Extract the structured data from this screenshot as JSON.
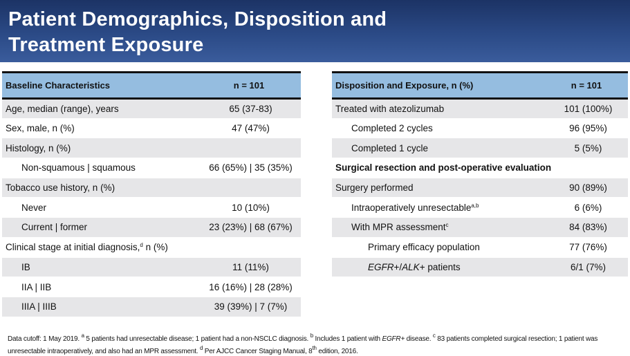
{
  "title": {
    "line1": "Patient Demographics, Disposition and",
    "line2": "Treatment Exposure"
  },
  "baseline": {
    "header": [
      "Baseline Characteristics",
      "n = 101"
    ],
    "rows": [
      {
        "label": "Age, median (range), years",
        "value": "65 (37-83)"
      },
      {
        "label": "Sex, male, n (%)",
        "value": "47 (47%)"
      },
      {
        "label": "Histology, n (%)",
        "value": ""
      },
      {
        "label": "Non-squamous | squamous",
        "value": "66 (65%) | 35 (35%)"
      },
      {
        "label": "Tobacco use history, n (%)",
        "value": ""
      },
      {
        "label": "Never",
        "value": "10 (10%)"
      },
      {
        "label": "Current | former",
        "value": "23 (23%) | 68 (67%)"
      },
      {
        "label": "Clinical stage at initial diagnosis,",
        "sup": "d",
        "label2": " n (%)",
        "value": ""
      },
      {
        "label": "IB",
        "value": "11 (11%)"
      },
      {
        "label": "IIA | IIB",
        "value": "16 (16%) | 28 (28%)"
      },
      {
        "label": "IIIA | IIIB",
        "value": "39 (39%) | 7 (7%)"
      }
    ]
  },
  "disposition": {
    "header": [
      "Disposition and Exposure, n (%)",
      "n = 101"
    ],
    "rows": [
      {
        "label": "Treated with atezolizumab",
        "value": "101 (100%)"
      },
      {
        "label": "Completed 2 cycles",
        "value": "96 (95%)"
      },
      {
        "label": "Completed 1 cycle",
        "value": "5 (5%)"
      },
      {
        "label": "Surgical resection and post-operative evaluation",
        "value": ""
      },
      {
        "label": "Surgery performed",
        "value": "90 (89%)"
      },
      {
        "label": "Intraoperatively unresectable",
        "sup": "a,b",
        "value": "6 (6%)"
      },
      {
        "label": "With MPR assessment",
        "sup": "c",
        "value": "84 (83%)"
      },
      {
        "label": "Primary efficacy population",
        "value": "77 (76%)"
      },
      {
        "label_italic1": "EGFR",
        "label_mid": "+/",
        "label_italic2": "ALK",
        "label": "+ patients",
        "value": "6/1 (7%)"
      }
    ]
  },
  "footnote": {
    "p1": "Data cutoff: 1 May 2019. ",
    "s1": "a",
    "p2": " 5 patients had unresectable disease; 1 patient had a non-NSCLC diagnosis. ",
    "s2": "b",
    "p3": " Includes 1 patient with ",
    "i1": "EGFR+",
    "p4": " disease. ",
    "s3": "c",
    "p5": " 83 patients completed surgical resection; 1 patient was unresectable intraoperatively, and also had an MPR assessment. ",
    "s4": "d",
    "p6": " Per AJCC Cancer Staging Manual, 8",
    "s5": "th",
    "p7": " edition, 2016."
  }
}
